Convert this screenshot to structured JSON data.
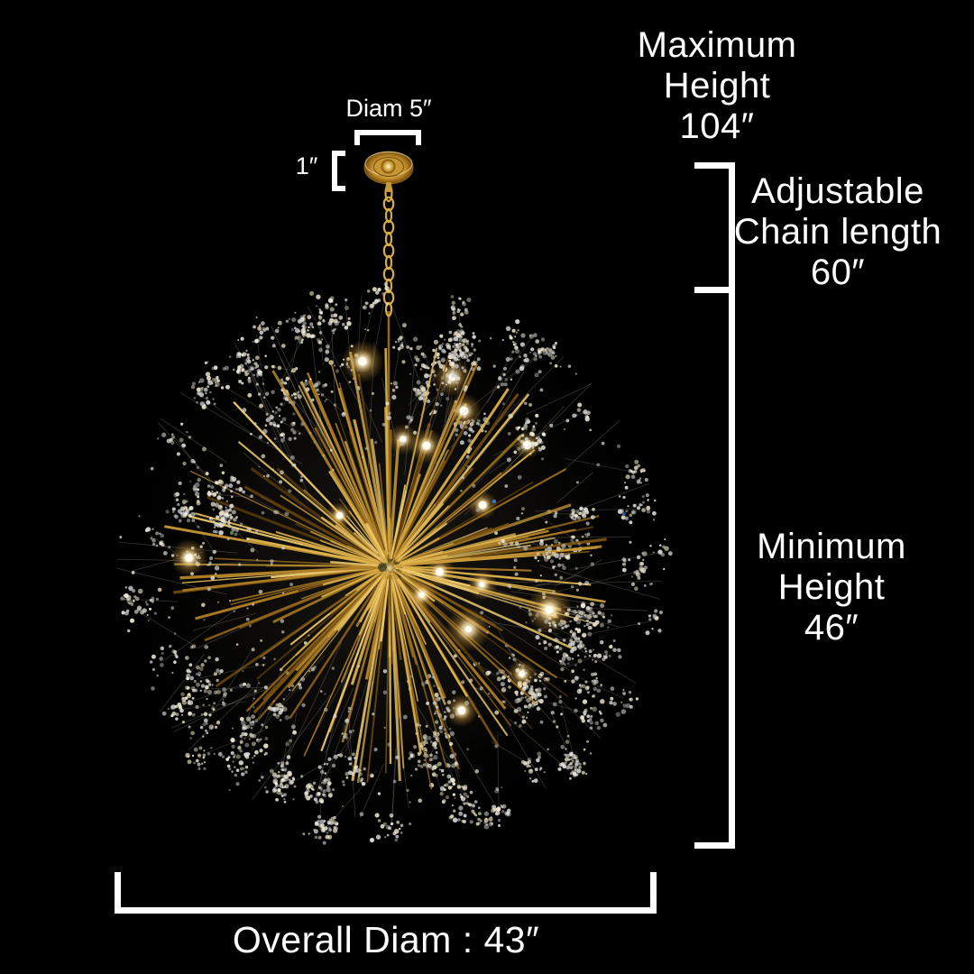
{
  "colors": {
    "background": "#000000",
    "text": "#ffffff",
    "bracket": "#ffffff",
    "gold_accent": "#c9952f",
    "crystal": "#e8e6db"
  },
  "annotations": {
    "maximum_height": {
      "line1": "Maximum",
      "line2": "Height",
      "value": "104″"
    },
    "chain_length": {
      "line1": "Adjustable",
      "line2": "Chain length",
      "value": "60″"
    },
    "minimum_height": {
      "line1": "Minimum",
      "line2": "Height",
      "value": "46″"
    },
    "overall_diameter": {
      "value": "Overall Diam : 43″"
    },
    "canopy_diameter": {
      "value": "Diam 5″"
    },
    "canopy_height": {
      "value": "1″"
    }
  }
}
